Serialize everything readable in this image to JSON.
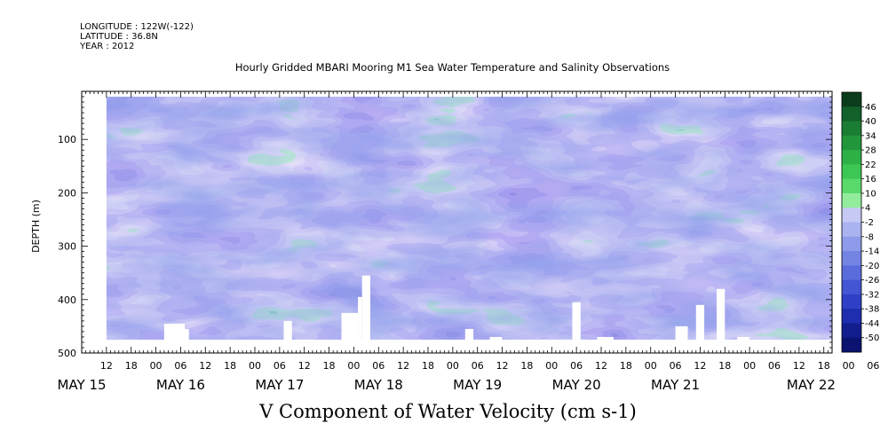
{
  "header": {
    "longitude": "LONGITUDE : 122W(-122)",
    "latitude": "LATITUDE : 36.8N",
    "year": "YEAR : 2012"
  },
  "chart_data": {
    "type": "heatmap",
    "title": "Hourly Gridded MBARI Mooring M1 Sea Water Temperature and Salinity Observations",
    "xlabel": "V Component of Water Velocity (cm s-1)",
    "ylabel": "DEPTH (m)",
    "x_range_hours": [
      6,
      188
    ],
    "x_origin": "2012-05-15T00:00",
    "y_range": [
      500,
      10
    ],
    "y_ticks": [
      100,
      200,
      300,
      400,
      500
    ],
    "x_hour_tick_labels": [
      "12",
      "18",
      "00",
      "06",
      "12",
      "18",
      "00",
      "06",
      "12",
      "18",
      "00",
      "06",
      "12",
      "18",
      "00",
      "06",
      "12",
      "18",
      "00",
      "06",
      "12",
      "18",
      "00",
      "06",
      "12",
      "18",
      "00",
      "06",
      "12",
      "18",
      "00",
      "06"
    ],
    "x_day_labels": [
      "MAY 15",
      "MAY 16",
      "MAY 17",
      "MAY 18",
      "MAY 19",
      "MAY 20",
      "MAY 21",
      "MAY 22"
    ],
    "colorbar": {
      "levels": [
        46,
        40,
        34,
        28,
        22,
        16,
        10,
        4,
        -2,
        -8,
        -14,
        -20,
        -26,
        -32,
        -38,
        -44,
        -50
      ],
      "range": [
        -50,
        50
      ],
      "colors_top_to_bottom": [
        "#0b3d1c",
        "#12602a",
        "#1a7d33",
        "#22963b",
        "#2db146",
        "#3cc653",
        "#5ad96b",
        "#93ec9b",
        "#c6c9f4",
        "#aab3f0",
        "#8e9bea",
        "#7384e3",
        "#5a6cdb",
        "#4355d2",
        "#2f40c6",
        "#1f2daf",
        "#131e8e",
        "#0b1370"
      ]
    },
    "data_start_hour": 12,
    "data_end_hour": 188,
    "data_top_depth": 20,
    "data_bottom_depth": 475
  }
}
